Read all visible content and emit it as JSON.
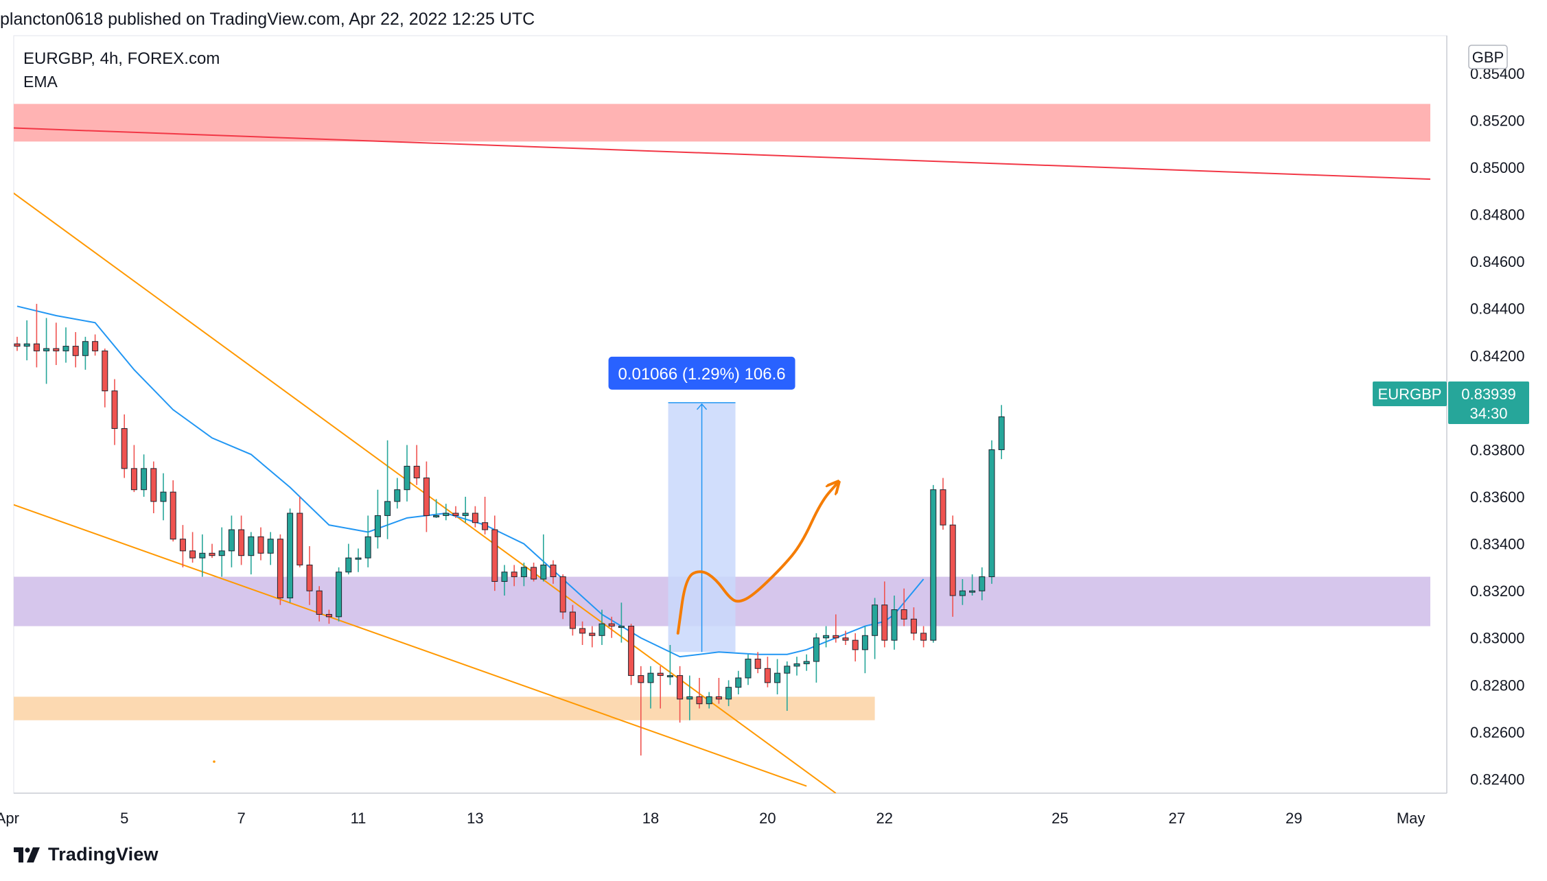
{
  "header": {
    "published_line": "plancton0618 published on TradingView.com, Apr 22, 2022 12:25 UTC"
  },
  "footer": {
    "brand": "TradingView",
    "logo_icon": "tradingview-logo-icon"
  },
  "colors": {
    "up": "#26a69a",
    "down": "#ef5350",
    "ema": "#2196f3",
    "trendline": "#ff9800",
    "resistance_line": "#f23645",
    "resistance_zone": "#ffb3b3",
    "support_zone": "#d6c6ec",
    "demand_zone": "#fcd9b1",
    "measure_fill": "#c9d8fb",
    "measure_label_bg": "#2962ff",
    "projection": "#f57c00",
    "price_badge": "#26a69a"
  },
  "chart_data": {
    "type": "candlestick",
    "symbol_label": "EURGBP, 4h, FOREX.com",
    "indicator_label": "EMA",
    "currency_label": "GBP",
    "price_badge": {
      "symbol": "EURGBP",
      "price": "0.83939",
      "countdown": "34:30"
    },
    "measure_label": "0.01066 (1.29%) 106.6",
    "ylim": [
      0.8234,
      0.8556
    ],
    "y_ticks": [
      "0.85400",
      "0.85200",
      "0.85000",
      "0.84800",
      "0.84600",
      "0.84400",
      "0.84200",
      "0.84000",
      "0.83800",
      "0.83600",
      "0.83400",
      "0.83200",
      "0.83000",
      "0.82800",
      "0.82600",
      "0.82400"
    ],
    "x_ticks": [
      {
        "label": "Apr",
        "index": -1
      },
      {
        "label": "5",
        "index": 11
      },
      {
        "label": "7",
        "index": 23
      },
      {
        "label": "11",
        "index": 35
      },
      {
        "label": "13",
        "index": 47
      },
      {
        "label": "18",
        "index": 65
      },
      {
        "label": "20",
        "index": 77
      },
      {
        "label": "22",
        "index": 89
      },
      {
        "label": "25",
        "index": 107
      },
      {
        "label": "27",
        "index": 119
      },
      {
        "label": "29",
        "index": 131
      },
      {
        "label": "May",
        "index": 143
      }
    ],
    "candles": [
      [
        0.8425,
        0.8428,
        0.8422,
        0.8424
      ],
      [
        0.8424,
        0.8435,
        0.8418,
        0.8425
      ],
      [
        0.8425,
        0.8442,
        0.8415,
        0.8422
      ],
      [
        0.8422,
        0.8436,
        0.8408,
        0.8423
      ],
      [
        0.8423,
        0.8434,
        0.8416,
        0.8422
      ],
      [
        0.8422,
        0.8432,
        0.8417,
        0.8424
      ],
      [
        0.8424,
        0.843,
        0.8415,
        0.842
      ],
      [
        0.842,
        0.8428,
        0.8414,
        0.8426
      ],
      [
        0.8426,
        0.8429,
        0.842,
        0.8422
      ],
      [
        0.8422,
        0.8423,
        0.8398,
        0.8405
      ],
      [
        0.8405,
        0.841,
        0.8382,
        0.8389
      ],
      [
        0.8389,
        0.8395,
        0.8368,
        0.8372
      ],
      [
        0.8372,
        0.8382,
        0.8362,
        0.8363
      ],
      [
        0.8363,
        0.8378,
        0.836,
        0.8372
      ],
      [
        0.8372,
        0.8375,
        0.8353,
        0.8358
      ],
      [
        0.8358,
        0.837,
        0.835,
        0.8362
      ],
      [
        0.8362,
        0.8367,
        0.8341,
        0.8342
      ],
      [
        0.8342,
        0.8348,
        0.833,
        0.8337
      ],
      [
        0.8337,
        0.8345,
        0.8332,
        0.8334
      ],
      [
        0.8334,
        0.8344,
        0.8326,
        0.8336
      ],
      [
        0.8336,
        0.834,
        0.8334,
        0.8335
      ],
      [
        0.8335,
        0.8347,
        0.8326,
        0.8337
      ],
      [
        0.8337,
        0.8352,
        0.833,
        0.8346
      ],
      [
        0.8346,
        0.8352,
        0.8331,
        0.8335
      ],
      [
        0.8335,
        0.8345,
        0.8327,
        0.8343
      ],
      [
        0.8343,
        0.8347,
        0.8333,
        0.8336
      ],
      [
        0.8336,
        0.8345,
        0.8331,
        0.8342
      ],
      [
        0.8342,
        0.8344,
        0.8314,
        0.8317
      ],
      [
        0.8317,
        0.8355,
        0.8315,
        0.8353
      ],
      [
        0.8353,
        0.836,
        0.833,
        0.8331
      ],
      [
        0.8331,
        0.8339,
        0.8314,
        0.832
      ],
      [
        0.832,
        0.8322,
        0.8307,
        0.831
      ],
      [
        0.831,
        0.8312,
        0.8306,
        0.8309
      ],
      [
        0.8309,
        0.833,
        0.8307,
        0.8328
      ],
      [
        0.8328,
        0.834,
        0.8327,
        0.8334
      ],
      [
        0.8334,
        0.8338,
        0.8328,
        0.8334
      ],
      [
        0.8334,
        0.8352,
        0.833,
        0.8343
      ],
      [
        0.8343,
        0.8363,
        0.8338,
        0.8352
      ],
      [
        0.8352,
        0.8384,
        0.8342,
        0.8358
      ],
      [
        0.8358,
        0.8368,
        0.8355,
        0.8363
      ],
      [
        0.8363,
        0.8382,
        0.8358,
        0.8373
      ],
      [
        0.8373,
        0.8382,
        0.8365,
        0.8368
      ],
      [
        0.8368,
        0.8375,
        0.8345,
        0.8352
      ],
      [
        0.8352,
        0.8359,
        0.8351,
        0.8352
      ],
      [
        0.8352,
        0.8357,
        0.835,
        0.8353
      ],
      [
        0.8353,
        0.8356,
        0.8351,
        0.8352
      ],
      [
        0.8352,
        0.836,
        0.8349,
        0.8353
      ],
      [
        0.8353,
        0.8356,
        0.8347,
        0.8349
      ],
      [
        0.8349,
        0.836,
        0.8344,
        0.8346
      ],
      [
        0.8346,
        0.8352,
        0.832,
        0.8324
      ],
      [
        0.8324,
        0.8331,
        0.8318,
        0.8328
      ],
      [
        0.8328,
        0.8331,
        0.8322,
        0.8326
      ],
      [
        0.8326,
        0.8332,
        0.8322,
        0.833
      ],
      [
        0.833,
        0.8332,
        0.8324,
        0.8325
      ],
      [
        0.8325,
        0.8344,
        0.8324,
        0.8331
      ],
      [
        0.8331,
        0.8333,
        0.8323,
        0.8326
      ],
      [
        0.8326,
        0.8327,
        0.8308,
        0.8311
      ],
      [
        0.8311,
        0.8314,
        0.8301,
        0.8304
      ],
      [
        0.8304,
        0.8307,
        0.8297,
        0.8302
      ],
      [
        0.8302,
        0.8305,
        0.8296,
        0.8301
      ],
      [
        0.8301,
        0.8312,
        0.8297,
        0.8306
      ],
      [
        0.8306,
        0.8309,
        0.83,
        0.8305
      ],
      [
        0.8305,
        0.8315,
        0.8298,
        0.8305
      ],
      [
        0.8305,
        0.8306,
        0.828,
        0.8284
      ],
      [
        0.8284,
        0.8288,
        0.825,
        0.8281
      ],
      [
        0.8281,
        0.8288,
        0.827,
        0.8285
      ],
      [
        0.8285,
        0.8288,
        0.827,
        0.8284
      ],
      [
        0.8284,
        0.8297,
        0.828,
        0.8284
      ],
      [
        0.8284,
        0.8288,
        0.8264,
        0.8274
      ],
      [
        0.8274,
        0.8284,
        0.8265,
        0.8275
      ],
      [
        0.8275,
        0.8283,
        0.827,
        0.8272
      ],
      [
        0.8272,
        0.8277,
        0.827,
        0.8275
      ],
      [
        0.8275,
        0.8283,
        0.8272,
        0.8274
      ],
      [
        0.8274,
        0.8282,
        0.8271,
        0.8279
      ],
      [
        0.8279,
        0.8286,
        0.8276,
        0.8283
      ],
      [
        0.8283,
        0.8293,
        0.828,
        0.8291
      ],
      [
        0.8291,
        0.8294,
        0.8285,
        0.8287
      ],
      [
        0.8287,
        0.8292,
        0.8279,
        0.8281
      ],
      [
        0.8281,
        0.8291,
        0.8276,
        0.8285
      ],
      [
        0.8285,
        0.829,
        0.8269,
        0.8288
      ],
      [
        0.8288,
        0.8292,
        0.8284,
        0.8289
      ],
      [
        0.8289,
        0.8293,
        0.8286,
        0.829
      ],
      [
        0.829,
        0.8302,
        0.8281,
        0.83
      ],
      [
        0.83,
        0.8305,
        0.8296,
        0.8301
      ],
      [
        0.8301,
        0.831,
        0.8298,
        0.83
      ],
      [
        0.83,
        0.8303,
        0.8297,
        0.8299
      ],
      [
        0.8299,
        0.8302,
        0.829,
        0.8295
      ],
      [
        0.8295,
        0.8305,
        0.8285,
        0.8301
      ],
      [
        0.8301,
        0.8317,
        0.8291,
        0.8314
      ],
      [
        0.8314,
        0.8324,
        0.8296,
        0.8299
      ],
      [
        0.8299,
        0.8318,
        0.8295,
        0.8312
      ],
      [
        0.8312,
        0.8321,
        0.8305,
        0.8308
      ],
      [
        0.8308,
        0.8313,
        0.8299,
        0.8302
      ],
      [
        0.8302,
        0.8305,
        0.8296,
        0.8299
      ],
      [
        0.8299,
        0.8365,
        0.8298,
        0.8363
      ],
      [
        0.8363,
        0.8368,
        0.8346,
        0.8348
      ],
      [
        0.8348,
        0.8352,
        0.8309,
        0.8318
      ],
      [
        0.8318,
        0.8325,
        0.8314,
        0.832
      ],
      [
        0.832,
        0.8327,
        0.8318,
        0.832
      ],
      [
        0.832,
        0.833,
        0.8316,
        0.8326
      ],
      [
        0.8326,
        0.8384,
        0.8323,
        0.838
      ],
      [
        0.838,
        0.8399,
        0.8376,
        0.8394
      ]
    ],
    "ema": [
      [
        0,
        0.8441
      ],
      [
        4,
        0.8437
      ],
      [
        8,
        0.8434
      ],
      [
        12,
        0.8414
      ],
      [
        16,
        0.8397
      ],
      [
        20,
        0.8385
      ],
      [
        24,
        0.8378
      ],
      [
        28,
        0.8364
      ],
      [
        32,
        0.8348
      ],
      [
        36,
        0.8345
      ],
      [
        40,
        0.8351
      ],
      [
        44,
        0.8353
      ],
      [
        48,
        0.8348
      ],
      [
        52,
        0.834
      ],
      [
        56,
        0.8325
      ],
      [
        60,
        0.831
      ],
      [
        64,
        0.83
      ],
      [
        68,
        0.8292
      ],
      [
        72,
        0.8294
      ],
      [
        76,
        0.8293
      ],
      [
        79,
        0.8293
      ],
      [
        81,
        0.8295
      ],
      [
        84,
        0.83
      ],
      [
        87,
        0.8305
      ],
      [
        89,
        0.8307
      ],
      [
        90,
        0.831
      ],
      [
        92,
        0.832
      ],
      [
        93,
        0.8325
      ]
    ],
    "resistance_line": {
      "from": [
        -2,
        0.8517
      ],
      "to": [
        145,
        0.8495
      ]
    },
    "trendline_upper": {
      "from": [
        -2,
        0.8494
      ],
      "to": [
        84,
        0.8234
      ]
    },
    "trendline_lower": {
      "from": [
        -2,
        0.8359
      ],
      "to": [
        81,
        0.8237
      ]
    },
    "zones": [
      {
        "name": "resistance-zone",
        "from": 0.8511,
        "to": 0.8527,
        "x_end": 145
      },
      {
        "name": "support-zone",
        "from": 0.8305,
        "to": 0.8326,
        "x_end": 145
      },
      {
        "name": "demand-zone",
        "from": 0.8265,
        "to": 0.8275,
        "x_end": 88
      }
    ],
    "measure": {
      "x_from": 66.8,
      "x_to": 73.7,
      "y_from": 0.8294,
      "y_to": 0.84
    },
    "projection_path": [
      [
        67.8,
        0.8302
      ],
      [
        68.6,
        0.8326
      ],
      [
        70.2,
        0.8329
      ],
      [
        71.7,
        0.8325
      ],
      [
        73.1,
        0.8317
      ],
      [
        74.0,
        0.8315
      ],
      [
        75.5,
        0.8318
      ],
      [
        78.5,
        0.833
      ],
      [
        80.5,
        0.834
      ],
      [
        82.5,
        0.8358
      ],
      [
        84.2,
        0.8366
      ]
    ]
  }
}
